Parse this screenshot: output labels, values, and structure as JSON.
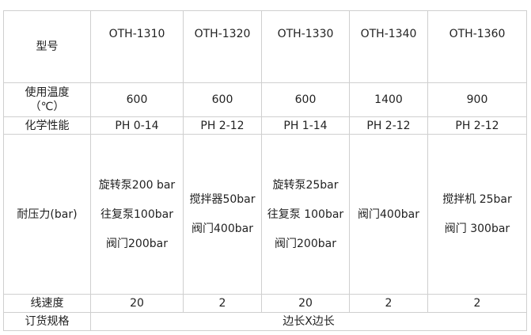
{
  "row_labels": {
    "model": "型号",
    "temp": "使用温度\n（℃）",
    "temp_line1": "使用温度",
    "temp_line2": "（℃）",
    "chem": "化学性能",
    "pressure": "耐压力(bar)",
    "speed": "线速度",
    "order": "订货规格"
  },
  "models": [
    "OTH-1310",
    "OTH-1320",
    "OTH-1330",
    "OTH-1340",
    "OTH-1360"
  ],
  "temperature": [
    "600",
    "600",
    "600",
    "1400",
    "900"
  ],
  "chemical": [
    "PH 0-14",
    "PH 2-12",
    "PH 1-14",
    "PH 2-12",
    "PH 2-12"
  ],
  "pressure": [
    [
      "旋转泵200 bar",
      "往复泵100bar",
      "阀门200bar"
    ],
    [
      "搅拌器50bar",
      "阀门400bar"
    ],
    [
      "旋转泵25bar",
      "往复泵 100bar",
      "阀门200bar"
    ],
    [
      "阀门400bar"
    ],
    [
      "搅拌机 25bar",
      "阀门 300bar"
    ]
  ],
  "line_speed": [
    "20",
    "2",
    "20",
    "2",
    "2"
  ],
  "order_spec": "边长X边长"
}
